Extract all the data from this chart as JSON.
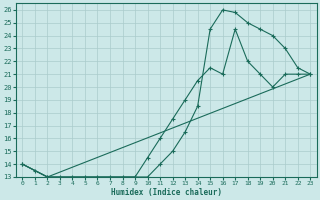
{
  "xlabel": "Humidex (Indice chaleur)",
  "bg_color": "#cce8e8",
  "line_color": "#1a6b5a",
  "grid_color": "#aacccc",
  "xlim": [
    -0.5,
    23.5
  ],
  "ylim": [
    13,
    26.5
  ],
  "xticks": [
    0,
    1,
    2,
    3,
    4,
    5,
    6,
    7,
    8,
    9,
    10,
    11,
    12,
    13,
    14,
    15,
    16,
    17,
    18,
    19,
    20,
    21,
    22,
    23
  ],
  "yticks": [
    13,
    14,
    15,
    16,
    17,
    18,
    19,
    20,
    21,
    22,
    23,
    24,
    25,
    26
  ],
  "line1_x": [
    0,
    1,
    2,
    3,
    4,
    5,
    6,
    7,
    8,
    9,
    10,
    11,
    12,
    13,
    14,
    15,
    16,
    17,
    18,
    19,
    20,
    21,
    22,
    23
  ],
  "line1_y": [
    14,
    13.5,
    13,
    13,
    13,
    13,
    13,
    13,
    13,
    13,
    13,
    14,
    15,
    16.5,
    18.5,
    24.5,
    26,
    25.8,
    25,
    24.5,
    24,
    23,
    21.5,
    21
  ],
  "line2_x": [
    0,
    2,
    9,
    10,
    11,
    12,
    13,
    14,
    15,
    16,
    17,
    18,
    19,
    20,
    21,
    22,
    23
  ],
  "line2_y": [
    14,
    13,
    13,
    14.5,
    16,
    17.5,
    19,
    20.5,
    21.5,
    21,
    24.5,
    22,
    21,
    20,
    21,
    21,
    21
  ],
  "line3_x": [
    0,
    2,
    23
  ],
  "line3_y": [
    14,
    13,
    21
  ]
}
